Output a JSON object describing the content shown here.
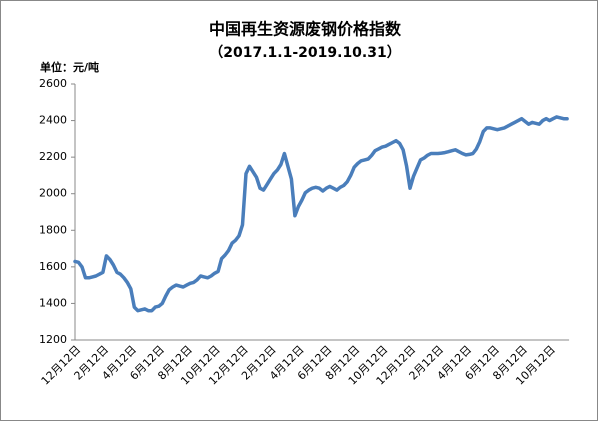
{
  "chart_data": {
    "type": "line",
    "title": "中国再生资源废钢价格指数",
    "subtitle": "（2017.1.1-2019.10.31）",
    "unit": "单位：元/吨",
    "categories": [
      "12月12日",
      null,
      null,
      null,
      null,
      null,
      null,
      null,
      "2月12日",
      null,
      null,
      null,
      null,
      null,
      null,
      null,
      "4月12日",
      null,
      null,
      null,
      null,
      null,
      null,
      null,
      "6月12日",
      null,
      null,
      null,
      null,
      null,
      null,
      null,
      "8月12日",
      null,
      null,
      null,
      null,
      null,
      null,
      null,
      "10月12日",
      null,
      null,
      null,
      null,
      null,
      null,
      null,
      "12月12日",
      null,
      null,
      null,
      null,
      null,
      null,
      null,
      "2月12日",
      null,
      null,
      null,
      null,
      null,
      null,
      null,
      "4月12日",
      null,
      null,
      null,
      null,
      null,
      null,
      null,
      "6月12日",
      null,
      null,
      null,
      null,
      null,
      null,
      null,
      "8月12日",
      null,
      null,
      null,
      null,
      null,
      null,
      null,
      "10月12日",
      null,
      null,
      null,
      null,
      null,
      null,
      null,
      "12月12日",
      null,
      null,
      null,
      null,
      null,
      null,
      null,
      "2月12日",
      null,
      null,
      null,
      null,
      null,
      null,
      null,
      "4月12日",
      null,
      null,
      null,
      null,
      null,
      null,
      null,
      "6月12日",
      null,
      null,
      null,
      null,
      null,
      null,
      null,
      "8月12日",
      null,
      null,
      null,
      null,
      null,
      null,
      null,
      "10月12日",
      null,
      null,
      null,
      null,
      null
    ],
    "series": [
      {
        "color": "#4a7ebb",
        "values": [
          1630,
          1625,
          1600,
          1540,
          1540,
          1545,
          1550,
          1560,
          1570,
          1660,
          1640,
          1610,
          1570,
          1560,
          1540,
          1515,
          1480,
          1380,
          1360,
          1365,
          1370,
          1360,
          1360,
          1380,
          1385,
          1400,
          1440,
          1475,
          1490,
          1500,
          1495,
          1490,
          1500,
          1510,
          1515,
          1530,
          1550,
          1545,
          1540,
          1550,
          1565,
          1575,
          1645,
          1665,
          1690,
          1730,
          1745,
          1770,
          1830,
          2110,
          2150,
          2120,
          2090,
          2030,
          2020,
          2050,
          2080,
          2110,
          2130,
          2160,
          2220,
          2150,
          2080,
          1880,
          1930,
          1965,
          2005,
          2020,
          2030,
          2035,
          2030,
          2015,
          2030,
          2040,
          2030,
          2020,
          2035,
          2045,
          2065,
          2100,
          2145,
          2165,
          2180,
          2185,
          2190,
          2210,
          2235,
          2245,
          2255,
          2260,
          2270,
          2280,
          2290,
          2275,
          2240,
          2150,
          2030,
          2095,
          2140,
          2185,
          2195,
          2210,
          2220,
          2220,
          2220,
          2222,
          2225,
          2230,
          2235,
          2240,
          2230,
          2220,
          2212,
          2215,
          2220,
          2245,
          2285,
          2340,
          2360,
          2360,
          2355,
          2350,
          2355,
          2360,
          2370,
          2380,
          2390,
          2400,
          2410,
          2395,
          2380,
          2390,
          2385,
          2380,
          2400,
          2410,
          2400,
          2410,
          2420,
          2415,
          2410,
          2410
        ]
      }
    ],
    "ylim": [
      1200,
      2600
    ],
    "yticks": [
      1200,
      1400,
      1600,
      1800,
      2000,
      2200,
      2400,
      2600
    ],
    "grid": false
  }
}
